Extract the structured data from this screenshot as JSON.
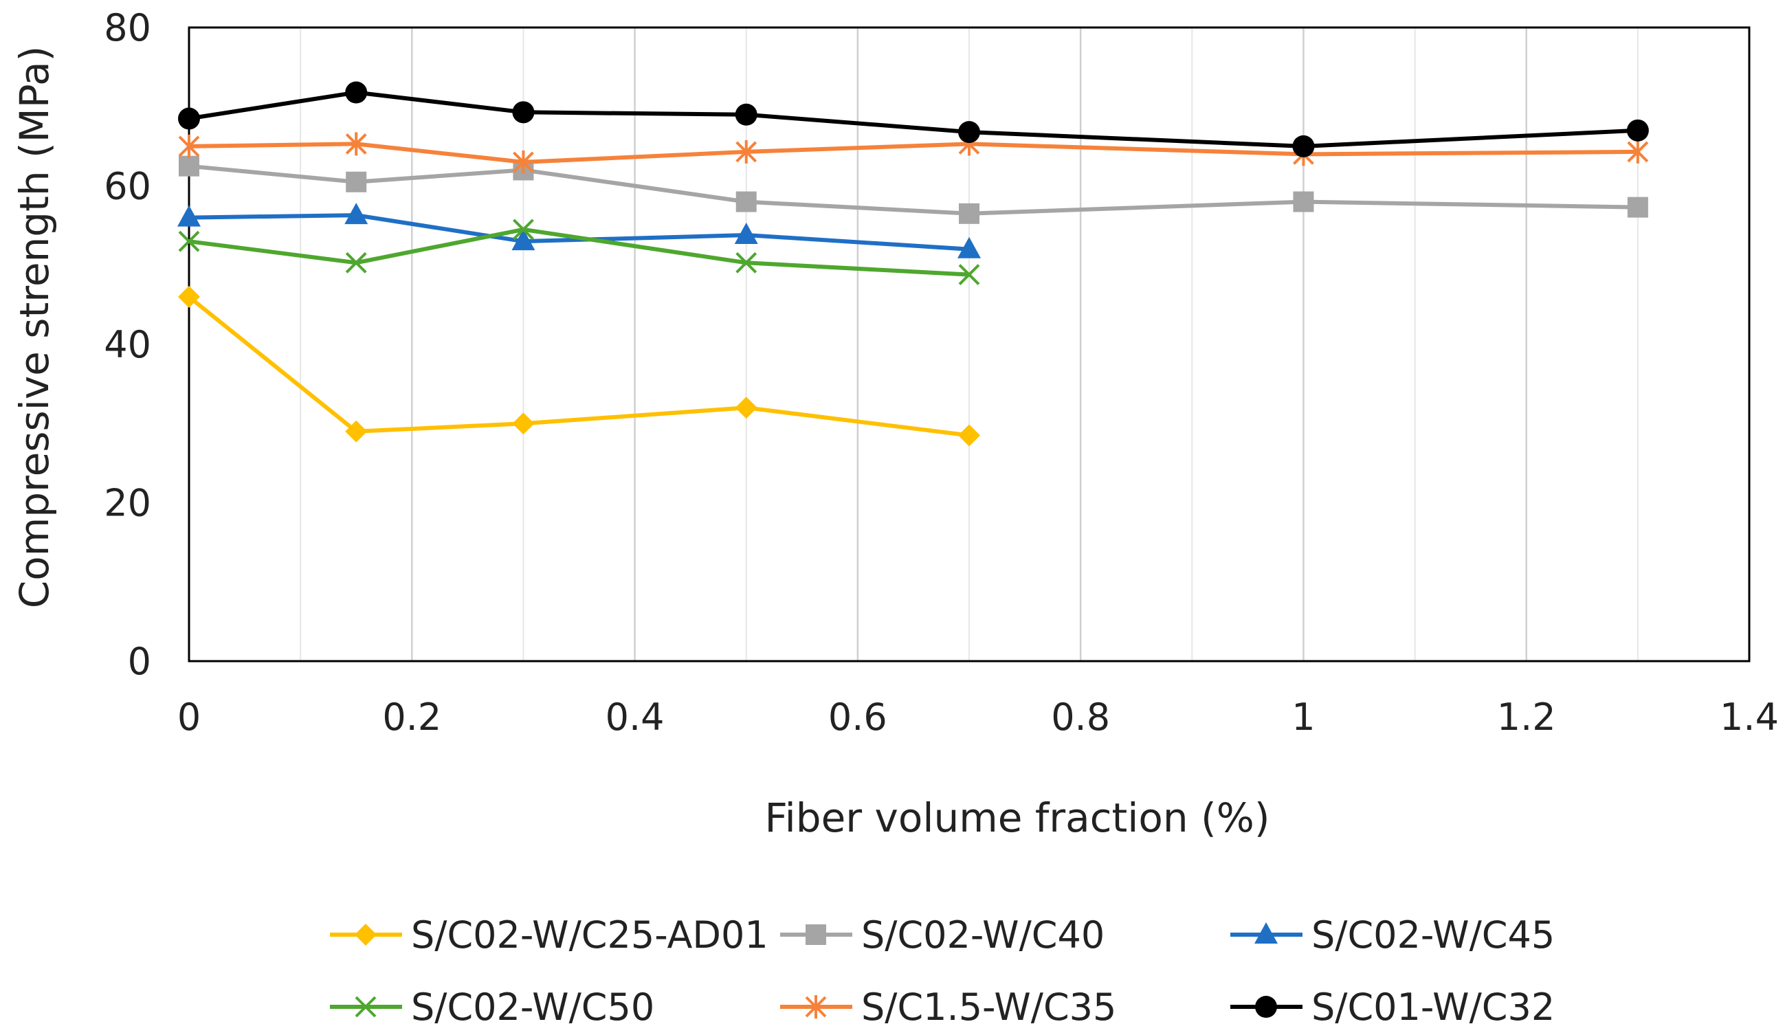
{
  "chart_data": {
    "type": "line",
    "title": "",
    "xlabel": "Fiber volume fraction (%)",
    "ylabel": "Compressive strength (MPa)",
    "xlim": [
      0,
      1.4
    ],
    "ylim": [
      0,
      80
    ],
    "x_ticks": [
      "0",
      "0.2",
      "0.4",
      "0.6",
      "0.8",
      "1",
      "1.2",
      "1.4"
    ],
    "y_ticks": [
      "0",
      "20",
      "40",
      "60",
      "80"
    ],
    "grid": "vertical",
    "legend_position": "bottom",
    "series": [
      {
        "name": "S/C02-W/C25-AD01",
        "color": "#FFC000",
        "marker": "diamond",
        "x": [
          0,
          0.15,
          0.3,
          0.5,
          0.7
        ],
        "values": [
          46,
          29,
          30,
          32,
          28.5
        ]
      },
      {
        "name": "S/C02-W/C40",
        "color": "#A5A5A5",
        "marker": "square",
        "x": [
          0,
          0.15,
          0.3,
          0.5,
          0.7,
          1.0,
          1.3
        ],
        "values": [
          62.5,
          60.5,
          62,
          58,
          56.5,
          58,
          57.3
        ]
      },
      {
        "name": "S/C02-W/C45",
        "color": "#1F6FC5",
        "marker": "triangle",
        "x": [
          0,
          0.15,
          0.3,
          0.5,
          0.7
        ],
        "values": [
          56,
          56.3,
          53,
          53.8,
          52
        ]
      },
      {
        "name": "S/C02-W/C50",
        "color": "#4EA72E",
        "marker": "x",
        "x": [
          0,
          0.15,
          0.3,
          0.5,
          0.7
        ],
        "values": [
          53,
          50.3,
          54.5,
          50.3,
          48.8
        ]
      },
      {
        "name": "S/C1.5-W/C35",
        "color": "#F6823A",
        "marker": "asterisk",
        "x": [
          0,
          0.15,
          0.3,
          0.5,
          0.7,
          1.0,
          1.3
        ],
        "values": [
          65,
          65.3,
          63,
          64.3,
          65.3,
          64,
          64.3
        ]
      },
      {
        "name": "S/C01-W/C32",
        "color": "#000000",
        "marker": "circle",
        "x": [
          0,
          0.15,
          0.3,
          0.5,
          0.7,
          1.0,
          1.3
        ],
        "values": [
          68.5,
          71.8,
          69.3,
          69,
          66.8,
          65,
          67
        ]
      }
    ]
  }
}
